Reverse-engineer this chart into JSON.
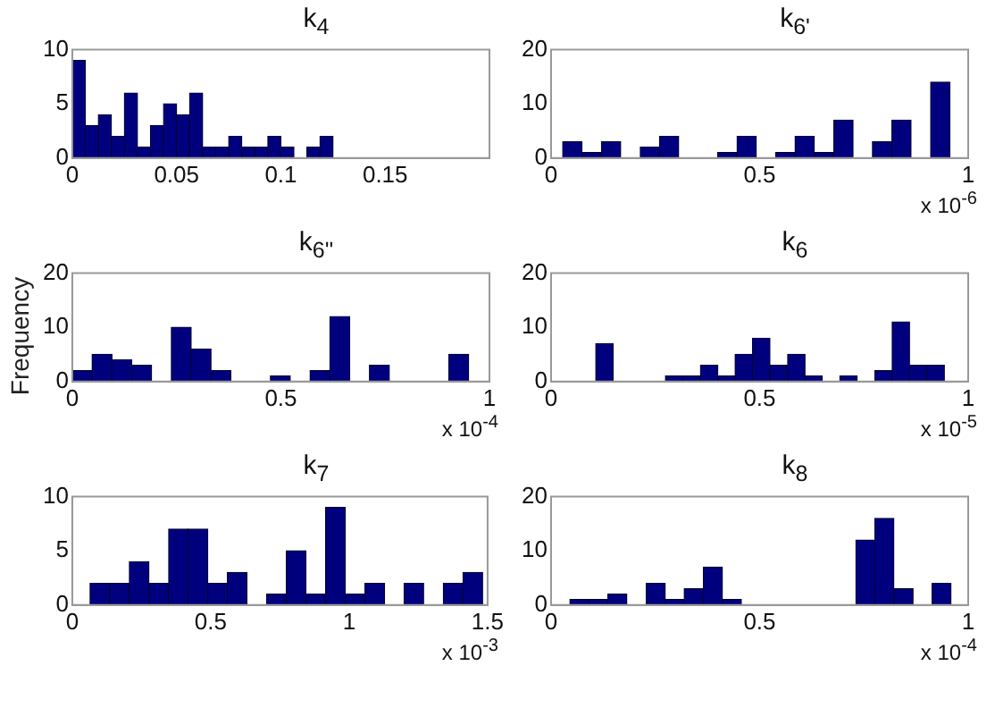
{
  "chart_data": [
    {
      "type": "histogram",
      "title": "k$_{4}$",
      "bins": [
        0,
        0.00625,
        0.0125,
        0.01875,
        0.025,
        0.03125,
        0.0375,
        0.04375,
        0.05,
        0.05625,
        0.0625,
        0.06875,
        0.075,
        0.08125,
        0.0875,
        0.09375,
        0.1,
        0.10625,
        0.1125,
        0.11875,
        0.125
      ],
      "values": [
        9,
        3,
        4,
        2,
        6,
        1,
        3,
        5,
        4,
        6,
        1,
        1,
        2,
        1,
        1,
        2,
        1,
        0,
        1,
        2
      ],
      "color": "#00007f",
      "xlim": [
        0,
        0.2
      ],
      "xticks": [
        0,
        0.05,
        0.1,
        0.15
      ],
      "ylim": [
        0,
        10
      ],
      "yticks": [
        0,
        5,
        10
      ],
      "grid": false
    },
    {
      "type": "histogram",
      "title": "k$_{6'}$",
      "bins": [
        0.028,
        0.074,
        0.121,
        0.167,
        0.214,
        0.26,
        0.306,
        0.353,
        0.399,
        0.446,
        0.492,
        0.538,
        0.585,
        0.631,
        0.678,
        0.724,
        0.77,
        0.817,
        0.863,
        0.91,
        0.956
      ],
      "values": [
        3,
        1,
        3,
        0,
        2,
        4,
        0,
        0,
        1,
        4,
        0,
        1,
        4,
        1,
        7,
        0,
        3,
        7,
        0,
        14
      ],
      "color": "#00007f",
      "xlim": [
        0,
        1
      ],
      "xticks": [
        0,
        0.5,
        1
      ],
      "ylim": [
        0,
        20
      ],
      "yticks": [
        0,
        10,
        20
      ],
      "grid": false,
      "annotations": [
        "x 10$^{-6}$"
      ]
    },
    {
      "type": "histogram",
      "title": "k$_{6''}$",
      "ylabel": "Frequency",
      "bins": [
        0,
        0.0475,
        0.095,
        0.1425,
        0.19,
        0.2375,
        0.285,
        0.3325,
        0.38,
        0.4275,
        0.475,
        0.5225,
        0.57,
        0.6175,
        0.665,
        0.7125,
        0.76,
        0.8075,
        0.855,
        0.9025,
        0.95
      ],
      "values": [
        2,
        5,
        4,
        3,
        0,
        10,
        6,
        2,
        0,
        0,
        1,
        0,
        2,
        12,
        0,
        3,
        0,
        0,
        0,
        5
      ],
      "color": "#00007f",
      "xlim": [
        0,
        1
      ],
      "xticks": [
        0,
        0.5,
        1
      ],
      "ylim": [
        0,
        20
      ],
      "yticks": [
        0,
        10,
        20
      ],
      "grid": false,
      "annotations": [
        "x 10$^{-4}$"
      ]
    },
    {
      "type": "histogram",
      "title": "k$_{6}$",
      "bins": [
        0.107,
        0.149,
        0.191,
        0.232,
        0.274,
        0.316,
        0.358,
        0.4,
        0.441,
        0.483,
        0.525,
        0.567,
        0.609,
        0.65,
        0.692,
        0.734,
        0.776,
        0.818,
        0.859,
        0.901,
        0.943
      ],
      "values": [
        7,
        0,
        0,
        0,
        1,
        1,
        3,
        1,
        5,
        8,
        3,
        5,
        1,
        0,
        1,
        0,
        2,
        11,
        3,
        3
      ],
      "color": "#00007f",
      "xlim": [
        0,
        1
      ],
      "xticks": [
        0,
        0.5,
        1
      ],
      "ylim": [
        0,
        20
      ],
      "yticks": [
        0,
        10,
        20
      ],
      "grid": false,
      "annotations": [
        "x 10$^{-5}$"
      ]
    },
    {
      "type": "histogram",
      "title": "k$_{7}$",
      "bins": [
        0.064,
        0.135,
        0.206,
        0.277,
        0.348,
        0.419,
        0.489,
        0.56,
        0.631,
        0.702,
        0.773,
        0.844,
        0.915,
        0.986,
        1.057,
        1.128,
        1.198,
        1.269,
        1.34,
        1.411,
        1.482
      ],
      "values": [
        2,
        2,
        4,
        2,
        7,
        7,
        2,
        3,
        0,
        1,
        5,
        1,
        9,
        1,
        2,
        0,
        2,
        0,
        2,
        3
      ],
      "color": "#00007f",
      "xlim": [
        0,
        1.5
      ],
      "xticks": [
        0,
        0.5,
        1,
        1.5
      ],
      "ylim": [
        0,
        10
      ],
      "yticks": [
        0,
        5,
        10
      ],
      "grid": false,
      "annotations": [
        "x 10$^{-3}$"
      ]
    },
    {
      "type": "histogram",
      "title": "k$_{8}$",
      "bins": [
        0.045,
        0.091,
        0.136,
        0.182,
        0.228,
        0.274,
        0.319,
        0.365,
        0.411,
        0.456,
        0.502,
        0.548,
        0.593,
        0.639,
        0.685,
        0.731,
        0.776,
        0.822,
        0.868,
        0.913,
        0.959
      ],
      "values": [
        1,
        1,
        2,
        0,
        4,
        1,
        3,
        7,
        1,
        0,
        0,
        0,
        0,
        0,
        0,
        12,
        16,
        3,
        0,
        4
      ],
      "color": "#00007f",
      "xlim": [
        0,
        1
      ],
      "xticks": [
        0,
        0.5,
        1
      ],
      "ylim": [
        0,
        20
      ],
      "yticks": [
        0,
        10,
        20
      ],
      "grid": false,
      "annotations": [
        "x 10$^{-4}$"
      ]
    }
  ]
}
